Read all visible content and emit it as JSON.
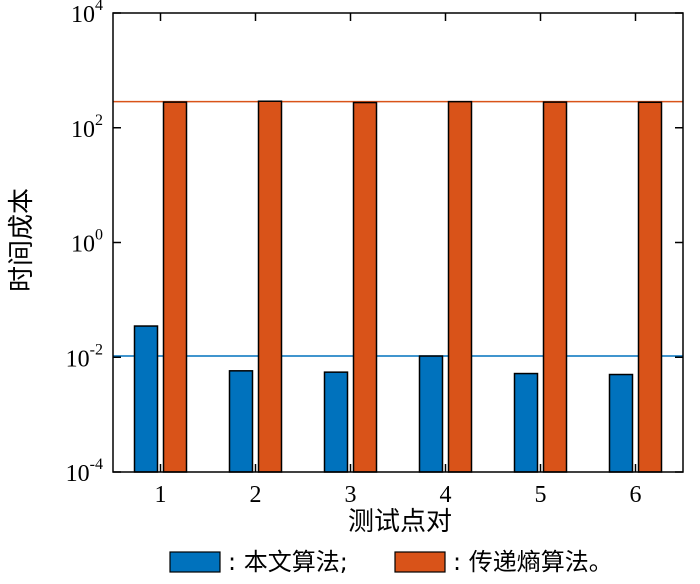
{
  "chart_data": {
    "type": "bar",
    "title": "",
    "xlabel": "测试点对",
    "ylabel": "时间成本",
    "yscale": "log",
    "ylim": [
      0.0001,
      10000
    ],
    "yticks": [
      {
        "value": 0.0001,
        "base": "10",
        "exp": "-4"
      },
      {
        "value": 0.01,
        "base": "10",
        "exp": "-2"
      },
      {
        "value": 1,
        "base": "10",
        "exp": "0"
      },
      {
        "value": 100,
        "base": "10",
        "exp": "2"
      },
      {
        "value": 10000,
        "base": "10",
        "exp": "4"
      }
    ],
    "categories": [
      "1",
      "2",
      "3",
      "4",
      "5",
      "6"
    ],
    "series": [
      {
        "name": "本文算法;",
        "color": "#0072BD",
        "values": [
          0.035,
          0.0058,
          0.0055,
          0.0105,
          0.0052,
          0.005
        ]
      },
      {
        "name": "传递熵算法。",
        "color": "#D95319",
        "values": [
          280,
          290,
          275,
          285,
          280,
          278
        ]
      }
    ],
    "reference_lines": [
      {
        "color": "#0072BD",
        "value": 0.0105
      },
      {
        "color": "#D95319",
        "value": 285
      }
    ],
    "grid": false,
    "legend": {
      "position": "bottom",
      "separator": ":"
    }
  }
}
